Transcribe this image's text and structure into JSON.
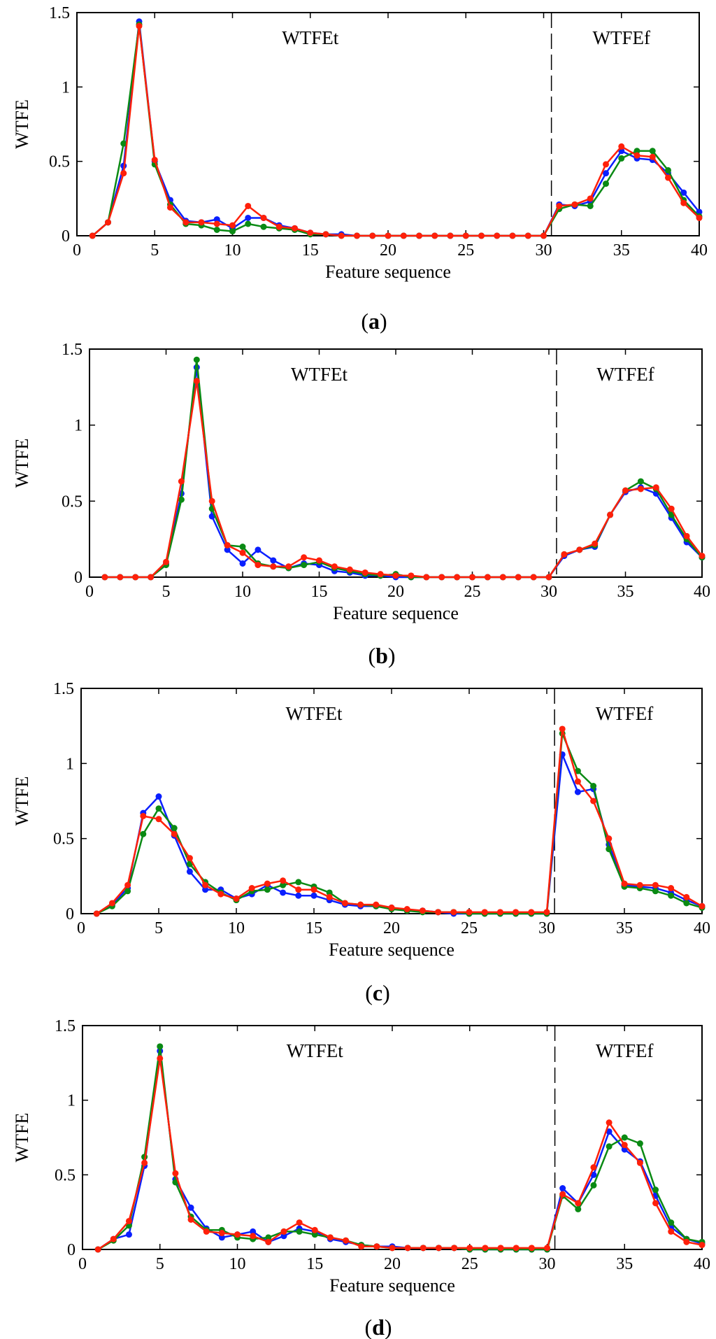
{
  "figure": {
    "colors": {
      "blue": "#0a1fff",
      "green": "#0a8a14",
      "red": "#ff200a",
      "axis": "#000000"
    }
  },
  "chart_data": [
    {
      "type": "line",
      "caption": "(a)",
      "caption_letter": "a",
      "xlabel": "Feature sequence",
      "ylabel": "WTFE",
      "xlim": [
        0,
        40
      ],
      "ylim": [
        0,
        1.5
      ],
      "xticks": [
        0,
        5,
        10,
        15,
        20,
        25,
        30,
        35,
        40
      ],
      "xtick_labels": [
        "0",
        "5",
        "10",
        "15",
        "20",
        "25",
        "30",
        "35",
        "40"
      ],
      "yticks": [
        0,
        0.5,
        1,
        1.5
      ],
      "ytick_labels": [
        "0",
        "0.5",
        "1",
        "1.5"
      ],
      "divider_x": 30.5,
      "region_labels": [
        {
          "text": "WTFEt",
          "x": 15
        },
        {
          "text": "WTFEf",
          "x": 35
        }
      ],
      "x": [
        1,
        2,
        3,
        4,
        5,
        6,
        7,
        8,
        9,
        10,
        11,
        12,
        13,
        14,
        15,
        16,
        17,
        18,
        19,
        20,
        21,
        22,
        23,
        24,
        25,
        26,
        27,
        28,
        29,
        30,
        31,
        32,
        33,
        34,
        35,
        36,
        37,
        38,
        39,
        40
      ],
      "series": [
        {
          "name": "blue",
          "color": "#0a1fff",
          "values": [
            0,
            0.09,
            0.47,
            1.44,
            0.5,
            0.24,
            0.1,
            0.09,
            0.11,
            0.05,
            0.12,
            0.12,
            0.07,
            0.05,
            0.02,
            0.01,
            0.01,
            0,
            0,
            0,
            0,
            0,
            0,
            0,
            0,
            0,
            0,
            0,
            0,
            0,
            0.21,
            0.2,
            0.23,
            0.42,
            0.57,
            0.52,
            0.51,
            0.42,
            0.29,
            0.16
          ]
        },
        {
          "name": "green",
          "color": "#0a8a14",
          "values": [
            0,
            0.09,
            0.62,
            1.42,
            0.48,
            0.21,
            0.08,
            0.07,
            0.04,
            0.03,
            0.08,
            0.06,
            0.05,
            0.04,
            0.01,
            0.01,
            0,
            0,
            0,
            0,
            0,
            0,
            0,
            0,
            0,
            0,
            0,
            0,
            0,
            0,
            0.18,
            0.21,
            0.2,
            0.35,
            0.52,
            0.57,
            0.57,
            0.44,
            0.24,
            0.13
          ]
        },
        {
          "name": "red",
          "color": "#ff200a",
          "values": [
            0,
            0.09,
            0.42,
            1.41,
            0.51,
            0.19,
            0.09,
            0.09,
            0.08,
            0.07,
            0.2,
            0.12,
            0.06,
            0.05,
            0.02,
            0.01,
            0,
            0,
            0,
            0,
            0,
            0,
            0,
            0,
            0,
            0,
            0,
            0,
            0,
            0,
            0.2,
            0.21,
            0.25,
            0.48,
            0.6,
            0.54,
            0.53,
            0.39,
            0.22,
            0.12
          ]
        }
      ]
    },
    {
      "type": "line",
      "caption": "(b)",
      "caption_letter": "b",
      "xlabel": "Feature sequence",
      "ylabel": "WTFE",
      "xlim": [
        0,
        40
      ],
      "ylim": [
        0,
        1.5
      ],
      "xticks": [
        0,
        5,
        10,
        15,
        20,
        25,
        30,
        35,
        40
      ],
      "xtick_labels": [
        "0",
        "5",
        "10",
        "15",
        "20",
        "25",
        "30",
        "35",
        "40"
      ],
      "yticks": [
        0,
        0.5,
        1,
        1.5
      ],
      "ytick_labels": [
        "0",
        "0.5",
        "1",
        "1.5"
      ],
      "divider_x": 30.5,
      "region_labels": [
        {
          "text": "WTFEt",
          "x": 15
        },
        {
          "text": "WTFEf",
          "x": 35
        }
      ],
      "x": [
        1,
        2,
        3,
        4,
        5,
        6,
        7,
        8,
        9,
        10,
        11,
        12,
        13,
        14,
        15,
        16,
        17,
        18,
        19,
        20,
        21,
        22,
        23,
        24,
        25,
        26,
        27,
        28,
        29,
        30,
        31,
        32,
        33,
        34,
        35,
        36,
        37,
        38,
        39,
        40
      ],
      "series": [
        {
          "name": "blue",
          "color": "#0a1fff",
          "values": [
            0,
            0,
            0,
            0,
            0.09,
            0.55,
            1.38,
            0.4,
            0.18,
            0.09,
            0.18,
            0.11,
            0.06,
            0.09,
            0.08,
            0.04,
            0.03,
            0.01,
            0.01,
            0,
            0,
            0,
            0,
            0,
            0,
            0,
            0,
            0,
            0,
            0,
            0.14,
            0.18,
            0.2,
            0.41,
            0.56,
            0.59,
            0.55,
            0.39,
            0.23,
            0.13
          ]
        },
        {
          "name": "green",
          "color": "#0a8a14",
          "values": [
            0,
            0,
            0,
            0,
            0.08,
            0.51,
            1.43,
            0.45,
            0.21,
            0.2,
            0.09,
            0.07,
            0.06,
            0.08,
            0.1,
            0.06,
            0.04,
            0.02,
            0.01,
            0.02,
            0,
            0,
            0,
            0,
            0,
            0,
            0,
            0,
            0,
            0,
            0.15,
            0.18,
            0.21,
            0.41,
            0.57,
            0.63,
            0.58,
            0.41,
            0.25,
            0.13
          ]
        },
        {
          "name": "red",
          "color": "#ff200a",
          "values": [
            0,
            0,
            0,
            0,
            0.1,
            0.63,
            1.29,
            0.5,
            0.21,
            0.16,
            0.08,
            0.07,
            0.07,
            0.13,
            0.11,
            0.07,
            0.05,
            0.03,
            0.02,
            0.01,
            0.01,
            0,
            0,
            0,
            0,
            0,
            0,
            0,
            0,
            0,
            0.15,
            0.18,
            0.22,
            0.41,
            0.57,
            0.58,
            0.59,
            0.45,
            0.27,
            0.14
          ]
        }
      ]
    },
    {
      "type": "line",
      "caption": "(c)",
      "caption_letter": "c",
      "xlabel": "Feature sequence",
      "ylabel": "WTFE",
      "xlim": [
        0,
        40
      ],
      "ylim": [
        0,
        1.5
      ],
      "xticks": [
        0,
        5,
        10,
        15,
        20,
        25,
        30,
        35,
        40
      ],
      "xtick_labels": [
        "0",
        "5",
        "10",
        "15",
        "20",
        "25",
        "30",
        "35",
        "40"
      ],
      "yticks": [
        0,
        0.5,
        1,
        1.5
      ],
      "ytick_labels": [
        "0",
        "0.5",
        "1",
        "1.5"
      ],
      "divider_x": 30.5,
      "region_labels": [
        {
          "text": "WTFEt",
          "x": 15
        },
        {
          "text": "WTFEf",
          "x": 35
        }
      ],
      "x": [
        1,
        2,
        3,
        4,
        5,
        6,
        7,
        8,
        9,
        10,
        11,
        12,
        13,
        14,
        15,
        16,
        17,
        18,
        19,
        20,
        21,
        22,
        23,
        24,
        25,
        26,
        27,
        28,
        29,
        30,
        31,
        32,
        33,
        34,
        35,
        36,
        37,
        38,
        39,
        40
      ],
      "series": [
        {
          "name": "blue",
          "color": "#0a1fff",
          "values": [
            0,
            0.06,
            0.17,
            0.67,
            0.78,
            0.52,
            0.28,
            0.16,
            0.16,
            0.1,
            0.13,
            0.19,
            0.14,
            0.12,
            0.12,
            0.09,
            0.06,
            0.05,
            0.05,
            0.04,
            0.02,
            0.02,
            0.01,
            0,
            0,
            0,
            0,
            0,
            0,
            0,
            1.06,
            0.81,
            0.83,
            0.46,
            0.19,
            0.18,
            0.17,
            0.14,
            0.09,
            0.05
          ]
        },
        {
          "name": "green",
          "color": "#0a8a14",
          "values": [
            0,
            0.05,
            0.15,
            0.53,
            0.7,
            0.57,
            0.33,
            0.21,
            0.14,
            0.09,
            0.15,
            0.16,
            0.19,
            0.21,
            0.18,
            0.14,
            0.07,
            0.06,
            0.05,
            0.03,
            0.02,
            0.01,
            0.01,
            0.01,
            0,
            0,
            0,
            0,
            0,
            0,
            1.2,
            0.95,
            0.85,
            0.43,
            0.18,
            0.17,
            0.15,
            0.12,
            0.07,
            0.04
          ]
        },
        {
          "name": "red",
          "color": "#ff200a",
          "values": [
            0,
            0.07,
            0.19,
            0.65,
            0.63,
            0.53,
            0.37,
            0.19,
            0.13,
            0.1,
            0.17,
            0.2,
            0.22,
            0.16,
            0.16,
            0.11,
            0.07,
            0.06,
            0.06,
            0.04,
            0.03,
            0.02,
            0.01,
            0.01,
            0.01,
            0.01,
            0.01,
            0.01,
            0.01,
            0.01,
            1.23,
            0.88,
            0.75,
            0.5,
            0.2,
            0.19,
            0.19,
            0.17,
            0.11,
            0.05
          ]
        }
      ]
    },
    {
      "type": "line",
      "caption": "(d)",
      "caption_letter": "d",
      "xlabel": "Feature sequence",
      "ylabel": "WTFE",
      "xlim": [
        0,
        40
      ],
      "ylim": [
        0,
        1.5
      ],
      "xticks": [
        0,
        5,
        10,
        15,
        20,
        25,
        30,
        35,
        40
      ],
      "xtick_labels": [
        "0",
        "5",
        "10",
        "15",
        "20",
        "25",
        "30",
        "35",
        "40"
      ],
      "yticks": [
        0,
        0.5,
        1,
        1.5
      ],
      "ytick_labels": [
        "0",
        "0.5",
        "1",
        "1.5"
      ],
      "divider_x": 30.5,
      "region_labels": [
        {
          "text": "WTFEt",
          "x": 15
        },
        {
          "text": "WTFEf",
          "x": 35
        }
      ],
      "x": [
        1,
        2,
        3,
        4,
        5,
        6,
        7,
        8,
        9,
        10,
        11,
        12,
        13,
        14,
        15,
        16,
        17,
        18,
        19,
        20,
        21,
        22,
        23,
        24,
        25,
        26,
        27,
        28,
        29,
        30,
        31,
        32,
        33,
        34,
        35,
        36,
        37,
        38,
        39,
        40
      ],
      "series": [
        {
          "name": "blue",
          "color": "#0a1fff",
          "values": [
            0,
            0.07,
            0.1,
            0.56,
            1.33,
            0.47,
            0.28,
            0.14,
            0.08,
            0.1,
            0.12,
            0.05,
            0.09,
            0.14,
            0.12,
            0.07,
            0.05,
            0.03,
            0.02,
            0.02,
            0.01,
            0.01,
            0.01,
            0.01,
            0,
            0,
            0,
            0,
            0,
            0,
            0.41,
            0.31,
            0.5,
            0.79,
            0.67,
            0.59,
            0.36,
            0.15,
            0.07,
            0.04
          ]
        },
        {
          "name": "green",
          "color": "#0a8a14",
          "values": [
            0,
            0.06,
            0.16,
            0.62,
            1.36,
            0.45,
            0.22,
            0.13,
            0.13,
            0.08,
            0.07,
            0.08,
            0.12,
            0.12,
            0.1,
            0.08,
            0.06,
            0.03,
            0.02,
            0.01,
            0.01,
            0.01,
            0.01,
            0.01,
            0,
            0,
            0,
            0,
            0,
            0,
            0.36,
            0.27,
            0.43,
            0.69,
            0.75,
            0.71,
            0.4,
            0.18,
            0.07,
            0.05
          ]
        },
        {
          "name": "red",
          "color": "#ff200a",
          "values": [
            0,
            0.07,
            0.19,
            0.58,
            1.28,
            0.51,
            0.2,
            0.12,
            0.11,
            0.1,
            0.09,
            0.05,
            0.12,
            0.18,
            0.13,
            0.08,
            0.06,
            0.02,
            0.02,
            0.01,
            0.01,
            0.01,
            0.01,
            0.01,
            0.01,
            0.01,
            0.01,
            0.01,
            0.01,
            0.01,
            0.37,
            0.31,
            0.55,
            0.85,
            0.7,
            0.58,
            0.31,
            0.12,
            0.05,
            0.03
          ]
        }
      ]
    }
  ]
}
